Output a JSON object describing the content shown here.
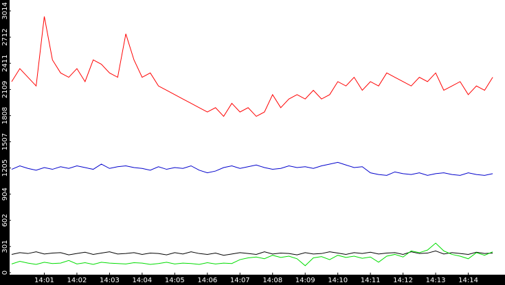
{
  "chart_data": {
    "type": "line",
    "categories": [
      null,
      null,
      null,
      null,
      "14:01",
      null,
      null,
      null,
      "14:02",
      null,
      null,
      null,
      "14:03",
      null,
      null,
      null,
      "14:04",
      null,
      null,
      null,
      "14:05",
      null,
      null,
      null,
      "14:06",
      null,
      null,
      null,
      "14:07",
      null,
      null,
      null,
      "14:08",
      null,
      null,
      null,
      "14:09",
      null,
      null,
      null,
      "14:10",
      null,
      null,
      null,
      "14:11",
      null,
      null,
      null,
      "14:12",
      null,
      null,
      null,
      "14:13",
      null,
      null,
      null,
      "14:14",
      null,
      null,
      null
    ],
    "ylim": [
      0,
      3140
    ],
    "yticks": [
      0,
      301,
      602,
      904,
      1205,
      1507,
      1808,
      2109,
      2411,
      2712,
      3014
    ],
    "series": [
      {
        "color": "#ff0000",
        "values": [
          2200,
          2350,
          2250,
          2150,
          2950,
          2450,
          2300,
          2250,
          2350,
          2200,
          2450,
          2400,
          2300,
          2250,
          2750,
          2450,
          2250,
          2300,
          2150,
          2100,
          2050,
          2000,
          1950,
          1900,
          1850,
          1900,
          1800,
          1950,
          1850,
          1900,
          1800,
          1850,
          2050,
          1900,
          2000,
          2050,
          2000,
          2100,
          2000,
          2050,
          2200,
          2150,
          2250,
          2100,
          2200,
          2150,
          2300,
          2250,
          2200,
          2150,
          2250,
          2200,
          2300,
          2100,
          2150,
          2200,
          2050,
          2150,
          2100,
          2250
        ]
      },
      {
        "color": "#0000cc",
        "values": [
          1190,
          1230,
          1200,
          1180,
          1210,
          1190,
          1220,
          1200,
          1230,
          1210,
          1190,
          1250,
          1200,
          1220,
          1230,
          1210,
          1200,
          1180,
          1220,
          1190,
          1210,
          1200,
          1230,
          1180,
          1150,
          1170,
          1210,
          1230,
          1200,
          1220,
          1240,
          1210,
          1190,
          1200,
          1230,
          1210,
          1220,
          1200,
          1230,
          1250,
          1270,
          1240,
          1210,
          1220,
          1150,
          1130,
          1120,
          1160,
          1140,
          1130,
          1150,
          1120,
          1140,
          1150,
          1130,
          1120,
          1150,
          1130,
          1120,
          1140
        ]
      },
      {
        "color": "#000000",
        "values": [
          210,
          230,
          220,
          240,
          215,
          225,
          230,
          205,
          220,
          235,
          210,
          225,
          240,
          215,
          220,
          230,
          210,
          225,
          220,
          205,
          230,
          215,
          240,
          220,
          210,
          225,
          200,
          215,
          230,
          220,
          210,
          240,
          215,
          225,
          220,
          205,
          230,
          215,
          220,
          240,
          225,
          210,
          230,
          220,
          235,
          215,
          225,
          230,
          210,
          240,
          220,
          225,
          250,
          215,
          230,
          220,
          210,
          235,
          220,
          225
        ]
      },
      {
        "color": "#00dd00",
        "values": [
          100,
          130,
          110,
          95,
          120,
          105,
          110,
          140,
          100,
          115,
          95,
          120,
          110,
          105,
          100,
          115,
          110,
          95,
          105,
          120,
          100,
          110,
          105,
          95,
          115,
          100,
          110,
          105,
          150,
          170,
          180,
          160,
          200,
          175,
          190,
          160,
          80,
          170,
          185,
          150,
          200,
          175,
          190,
          165,
          180,
          120,
          190,
          210,
          180,
          250,
          230,
          260,
          340,
          250,
          210,
          190,
          160,
          230,
          200,
          240
        ]
      }
    ]
  }
}
